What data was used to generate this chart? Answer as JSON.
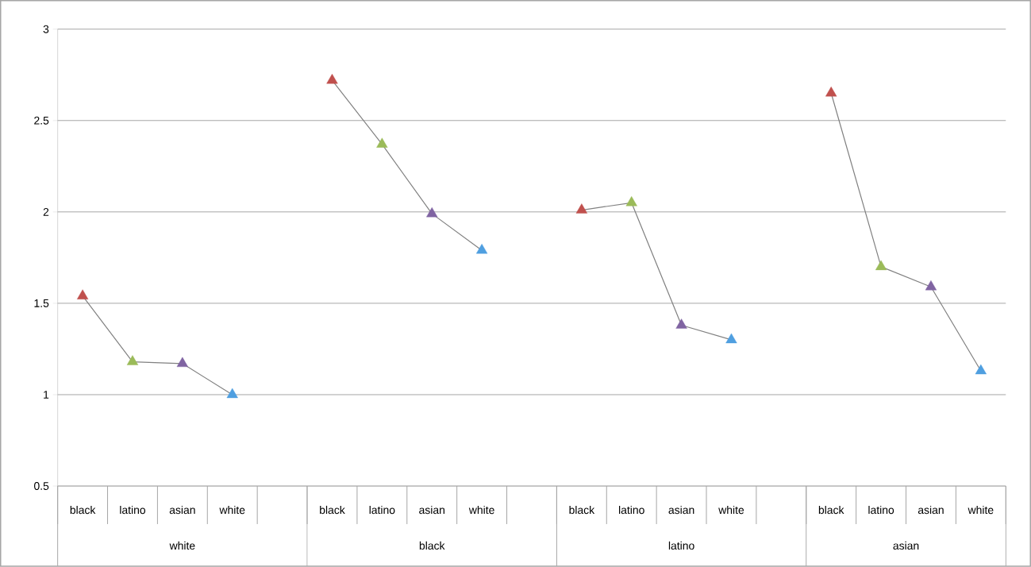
{
  "chart_data": {
    "type": "line",
    "categories": [
      "black",
      "latino",
      "asian",
      "white",
      null,
      "black",
      "latino",
      "asian",
      "white",
      null,
      "black",
      "latino",
      "asian",
      "white",
      null,
      "black",
      "latino",
      "asian",
      "white"
    ],
    "values": [
      1.54,
      1.18,
      1.17,
      1.0,
      null,
      2.72,
      2.37,
      1.99,
      1.79,
      null,
      2.01,
      2.05,
      1.38,
      1.3,
      null,
      2.65,
      1.7,
      1.59,
      1.13
    ],
    "colors": [
      "#c0504d",
      "#9bbb59",
      "#8064a2",
      "#4f9fe0",
      null,
      "#c0504d",
      "#9bbb59",
      "#8064a2",
      "#4f9fe0",
      null,
      "#c0504d",
      "#9bbb59",
      "#8064a2",
      "#4f9fe0",
      null,
      "#c0504d",
      "#9bbb59",
      "#8064a2",
      "#4f9fe0"
    ],
    "annotations": [
      "white",
      "black",
      "latino",
      "asian"
    ],
    "ylim": [
      0.5,
      3
    ],
    "yticks": [
      0.5,
      1,
      1.5,
      2,
      2.5,
      3
    ],
    "grid": "y",
    "marker": "triangle",
    "line_style": "solid"
  }
}
